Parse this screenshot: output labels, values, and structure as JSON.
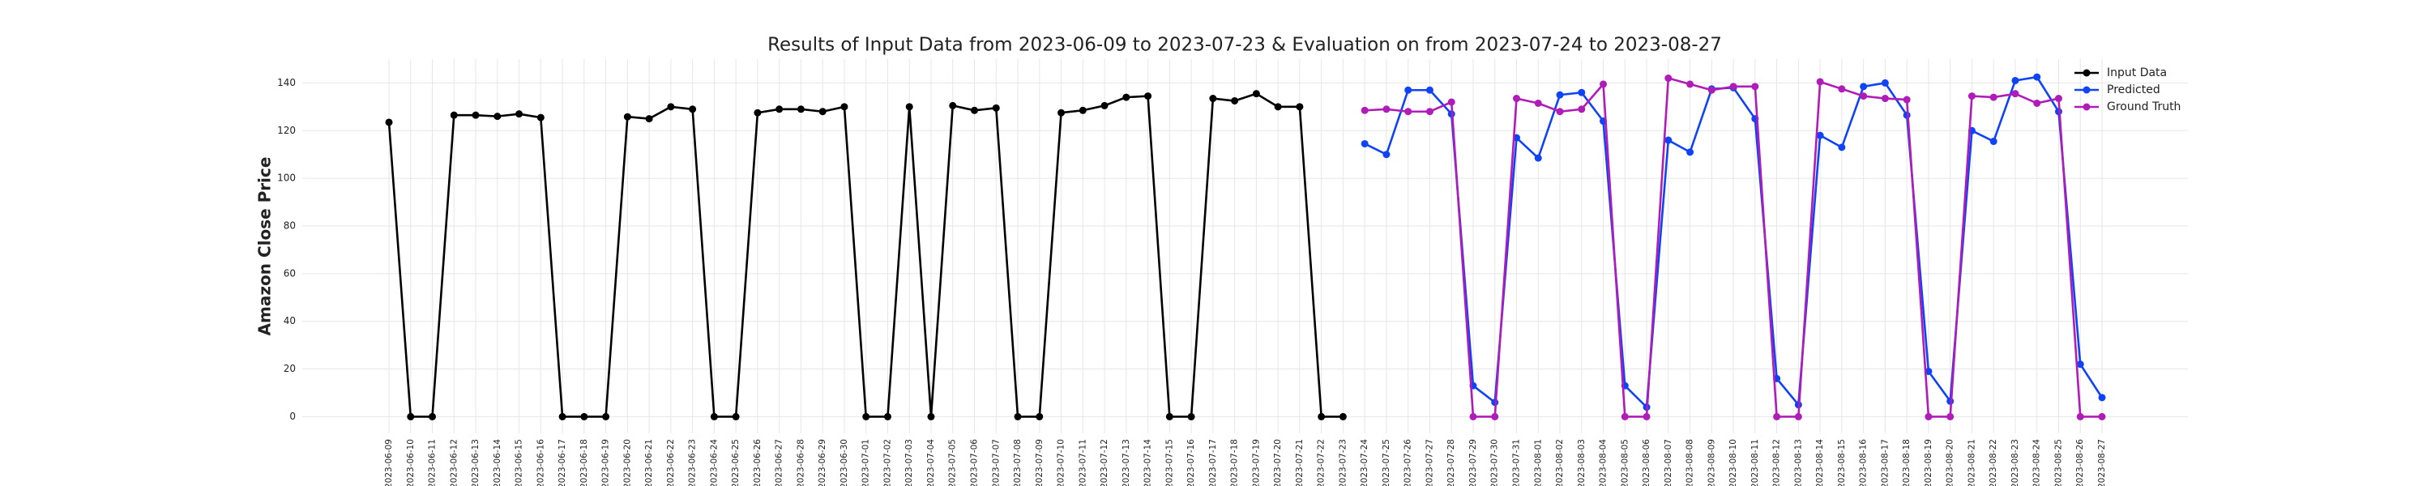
{
  "chart_data": {
    "type": "line",
    "title": "Results of Input Data from 2023-06-09 to 2023-07-23 & Evaluation on from 2023-07-24 to 2023-08-27",
    "y_label": "Amazon Close Price",
    "categories": [
      "2023-06-09",
      "2023-06-10",
      "2023-06-11",
      "2023-06-12",
      "2023-06-13",
      "2023-06-14",
      "2023-06-15",
      "2023-06-16",
      "2023-06-17",
      "2023-06-18",
      "2023-06-19",
      "2023-06-20",
      "2023-06-21",
      "2023-06-22",
      "2023-06-23",
      "2023-06-24",
      "2023-06-25",
      "2023-06-26",
      "2023-06-27",
      "2023-06-28",
      "2023-06-29",
      "2023-06-30",
      "2023-07-01",
      "2023-07-02",
      "2023-07-03",
      "2023-07-04",
      "2023-07-05",
      "2023-07-06",
      "2023-07-07",
      "2023-07-08",
      "2023-07-09",
      "2023-07-10",
      "2023-07-11",
      "2023-07-12",
      "2023-07-13",
      "2023-07-14",
      "2023-07-15",
      "2023-07-16",
      "2023-07-17",
      "2023-07-18",
      "2023-07-19",
      "2023-07-20",
      "2023-07-21",
      "2023-07-22",
      "2023-07-23",
      "2023-07-24",
      "2023-07-25",
      "2023-07-26",
      "2023-07-27",
      "2023-07-28",
      "2023-07-29",
      "2023-07-30",
      "2023-07-31",
      "2023-08-01",
      "2023-08-02",
      "2023-08-03",
      "2023-08-04",
      "2023-08-05",
      "2023-08-06",
      "2023-08-07",
      "2023-08-08",
      "2023-08-09",
      "2023-08-10",
      "2023-08-11",
      "2023-08-12",
      "2023-08-13",
      "2023-08-14",
      "2023-08-15",
      "2023-08-16",
      "2023-08-17",
      "2023-08-18",
      "2023-08-19",
      "2023-08-20",
      "2023-08-21",
      "2023-08-22",
      "2023-08-23",
      "2023-08-24",
      "2023-08-25",
      "2023-08-26",
      "2023-08-27"
    ],
    "series": [
      {
        "name": "Input Data",
        "color": "#000000",
        "values": [
          123.5,
          0,
          0,
          126.5,
          126.5,
          126,
          127,
          125.5,
          0,
          0,
          0,
          125.8,
          125,
          130,
          129,
          0,
          0,
          127.5,
          129,
          129,
          128,
          130,
          0,
          0,
          130,
          0,
          130.5,
          128.5,
          129.5,
          0,
          0,
          127.5,
          128.5,
          130.5,
          134,
          134.5,
          0,
          0,
          133.5,
          132.5,
          135.5,
          130,
          130,
          0,
          0,
          null,
          null,
          null,
          null,
          null,
          null,
          null,
          null,
          null,
          null,
          null,
          null,
          null,
          null,
          null,
          null,
          null,
          null,
          null,
          null,
          null,
          null,
          null,
          null,
          null,
          null,
          null,
          null,
          null,
          null,
          null,
          null,
          null,
          null,
          null
        ]
      },
      {
        "name": "Predicted",
        "color": "#0f43f5",
        "values": [
          null,
          null,
          null,
          null,
          null,
          null,
          null,
          null,
          null,
          null,
          null,
          null,
          null,
          null,
          null,
          null,
          null,
          null,
          null,
          null,
          null,
          null,
          null,
          null,
          null,
          null,
          null,
          null,
          null,
          null,
          null,
          null,
          null,
          null,
          null,
          null,
          null,
          null,
          null,
          null,
          null,
          null,
          null,
          null,
          null,
          114.5,
          110,
          137,
          137,
          127,
          13,
          6,
          117,
          108.5,
          135,
          136,
          124,
          13,
          4,
          116,
          111,
          137.5,
          138,
          125,
          16,
          5,
          118,
          113,
          138.5,
          140,
          126.5,
          19,
          6.5,
          120,
          115.5,
          141,
          142.5,
          128,
          22,
          8
        ]
      },
      {
        "name": "Ground Truth",
        "color": "#b01cb8",
        "values": [
          null,
          null,
          null,
          null,
          null,
          null,
          null,
          null,
          null,
          null,
          null,
          null,
          null,
          null,
          null,
          null,
          null,
          null,
          null,
          null,
          null,
          null,
          null,
          null,
          null,
          null,
          null,
          null,
          null,
          null,
          null,
          null,
          null,
          null,
          null,
          null,
          null,
          null,
          null,
          null,
          null,
          null,
          null,
          null,
          null,
          128.5,
          129,
          128,
          128,
          132,
          0,
          0,
          133.5,
          131.5,
          128,
          129,
          139.5,
          0,
          0,
          142,
          139.5,
          137,
          138.5,
          138.5,
          0,
          0,
          140.5,
          137.5,
          134.5,
          133.5,
          133,
          0,
          0,
          134.5,
          134,
          135.5,
          131.5,
          133.5,
          0,
          0
        ]
      }
    ],
    "ylim": [
      -7,
      150
    ],
    "yticks": [
      0,
      20,
      40,
      60,
      80,
      100,
      120,
      140
    ],
    "grid": true,
    "legend": "upper right"
  }
}
